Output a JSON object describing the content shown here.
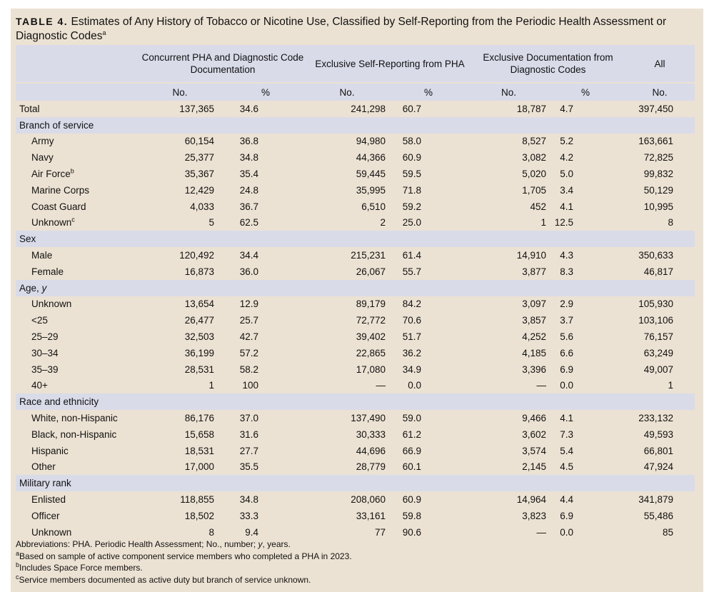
{
  "title": {
    "lead": "TABLE 4.",
    "text": "Estimates of Any History of Tobacco or Nicotine Use, Classified by Self-Reporting from the Periodic Health Assessment or Diagnostic Codes",
    "footnote_mark": "a"
  },
  "headers": {
    "col1": "Concurrent PHA and Diagnostic Code Documentation",
    "col2": "Exclusive Self-Reporting from PHA",
    "col3": "Exclusive Documentation from Diagnostic Codes",
    "col4": "All",
    "no": "No.",
    "pct": "%"
  },
  "total": {
    "label": "Total",
    "values": [
      "137,365",
      "34.6",
      "241,298",
      "60.7",
      "18,787",
      "4.7",
      "397,450"
    ]
  },
  "sections": [
    {
      "label": "Branch of service",
      "label_italic": "",
      "rows": [
        {
          "label": "Army",
          "mark": "",
          "values": [
            "60,154",
            "36.8",
            "94,980",
            "58.0",
            "8,527",
            "5.2",
            "163,661"
          ]
        },
        {
          "label": "Navy",
          "mark": "",
          "values": [
            "25,377",
            "34.8",
            "44,366",
            "60.9",
            "3,082",
            "4.2",
            "72,825"
          ]
        },
        {
          "label": "Air Force",
          "mark": "b",
          "values": [
            "35,367",
            "35.4",
            "59,445",
            "59.5",
            "5,020",
            "5.0",
            "99,832"
          ]
        },
        {
          "label": "Marine Corps",
          "mark": "",
          "values": [
            "12,429",
            "24.8",
            "35,995",
            "71.8",
            "1,705",
            "3.4",
            "50,129"
          ]
        },
        {
          "label": "Coast Guard",
          "mark": "",
          "values": [
            "4,033",
            "36.7",
            "6,510",
            "59.2",
            "452",
            "4.1",
            "10,995"
          ]
        },
        {
          "label": "Unknown",
          "mark": "c",
          "values": [
            "5",
            "62.5",
            "2",
            "25.0",
            "1",
            "12.5",
            "8"
          ]
        }
      ]
    },
    {
      "label": "Sex",
      "label_italic": "",
      "rows": [
        {
          "label": "Male",
          "mark": "",
          "values": [
            "120,492",
            "34.4",
            "215,231",
            "61.4",
            "14,910",
            "4.3",
            "350,633"
          ]
        },
        {
          "label": "Female",
          "mark": "",
          "values": [
            "16,873",
            "36.0",
            "26,067",
            "55.7",
            "3,877",
            "8.3",
            "46,817"
          ]
        }
      ]
    },
    {
      "label": "Age, ",
      "label_italic": "y",
      "rows": [
        {
          "label": "Unknown",
          "mark": "",
          "values": [
            "13,654",
            "12.9",
            "89,179",
            "84.2",
            "3,097",
            "2.9",
            "105,930"
          ]
        },
        {
          "label": "<25",
          "mark": "",
          "values": [
            "26,477",
            "25.7",
            "72,772",
            "70.6",
            "3,857",
            "3.7",
            "103,106"
          ]
        },
        {
          "label": "25–29",
          "mark": "",
          "values": [
            "32,503",
            "42.7",
            "39,402",
            "51.7",
            "4,252",
            "5.6",
            "76,157"
          ]
        },
        {
          "label": "30–34",
          "mark": "",
          "values": [
            "36,199",
            "57.2",
            "22,865",
            "36.2",
            "4,185",
            "6.6",
            "63,249"
          ]
        },
        {
          "label": "35–39",
          "mark": "",
          "values": [
            "28,531",
            "58.2",
            "17,080",
            "34.9",
            "3,396",
            "6.9",
            "49,007"
          ]
        },
        {
          "label": "40+",
          "mark": "",
          "values": [
            "1",
            "100",
            "—",
            "0.0",
            "—",
            "0.0",
            "1"
          ]
        }
      ]
    },
    {
      "label": "Race and ethnicity",
      "label_italic": "",
      "rows": [
        {
          "label": "White, non-Hispanic",
          "mark": "",
          "values": [
            "86,176",
            "37.0",
            "137,490",
            "59.0",
            "9,466",
            "4.1",
            "233,132"
          ]
        },
        {
          "label": "Black, non-Hispanic",
          "mark": "",
          "values": [
            "15,658",
            "31.6",
            "30,333",
            "61.2",
            "3,602",
            "7.3",
            "49,593"
          ]
        },
        {
          "label": "Hispanic",
          "mark": "",
          "values": [
            "18,531",
            "27.7",
            "44,696",
            "66.9",
            "3,574",
            "5.4",
            "66,801"
          ]
        },
        {
          "label": "Other",
          "mark": "",
          "values": [
            "17,000",
            "35.5",
            "28,779",
            "60.1",
            "2,145",
            "4.5",
            "47,924"
          ]
        }
      ]
    },
    {
      "label": "Military rank",
      "label_italic": "",
      "rows": [
        {
          "label": "Enlisted",
          "mark": "",
          "values": [
            "118,855",
            "34.8",
            "208,060",
            "60.9",
            "14,964",
            "4.4",
            "341,879"
          ]
        },
        {
          "label": "Officer",
          "mark": "",
          "values": [
            "18,502",
            "33.3",
            "33,161",
            "59.8",
            "3,823",
            "6.9",
            "55,486"
          ]
        },
        {
          "label": "Unknown",
          "mark": "",
          "values": [
            "8",
            "9.4",
            "77",
            "90.6",
            "—",
            "0.0",
            "85"
          ]
        }
      ]
    }
  ],
  "notes": {
    "abbrev_pre": "Abbreviations: PHA. Periodic Health Assessment; No., number; ",
    "abbrev_italic": "y",
    "abbrev_post": ", years.",
    "footnotes": [
      {
        "mark": "a",
        "text": "Based on sample of active component service members who completed a PHA in 2023."
      },
      {
        "mark": "b",
        "text": "Includes Space Force members."
      },
      {
        "mark": "c",
        "text": "Service members documented as active duty but branch of service unknown."
      }
    ]
  }
}
